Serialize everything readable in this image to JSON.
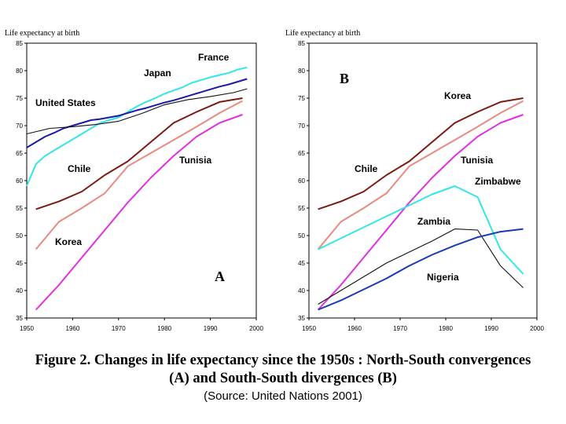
{
  "figure": {
    "caption_line1": "Figure 2. Changes in life expectancy since the 1950s : North-South convergences",
    "caption_line2": "(A) and South-South divergences (B)",
    "source": "(Source: United Nations 2001)"
  },
  "chart_data": [
    {
      "type": "line",
      "panel_label": "A",
      "ylabel": "Life expectancy at birth",
      "xlabel": "",
      "xlim": [
        1950,
        2000
      ],
      "ylim": [
        35,
        85
      ],
      "xticks": [
        "1950",
        "1960",
        "1970",
        "1980",
        "1990",
        "2000"
      ],
      "yticks": [
        "35",
        "40",
        "45",
        "50",
        "55",
        "60",
        "65",
        "70",
        "75",
        "80",
        "85"
      ],
      "grid": false,
      "series": [
        {
          "name": "Japan",
          "color": "#33e6e6",
          "x": [
            1950,
            1952,
            1954,
            1956,
            1958,
            1960,
            1962,
            1964,
            1966,
            1968,
            1970,
            1972,
            1974,
            1976,
            1978,
            1980,
            1982,
            1984,
            1986,
            1988,
            1990,
            1992,
            1994,
            1996,
            1998
          ],
          "y": [
            59,
            63,
            64.5,
            65.5,
            66.5,
            67.5,
            68.5,
            69.5,
            70.5,
            71,
            71.5,
            72.5,
            73.5,
            74.3,
            75,
            75.8,
            76.4,
            77,
            77.8,
            78.3,
            78.8,
            79.2,
            79.6,
            80.2,
            80.6
          ]
        },
        {
          "name": "France",
          "color": "#1a1aa6",
          "x": [
            1950,
            1952,
            1954,
            1956,
            1958,
            1960,
            1962,
            1964,
            1966,
            1968,
            1970,
            1972,
            1974,
            1976,
            1978,
            1980,
            1982,
            1984,
            1986,
            1988,
            1990,
            1992,
            1994,
            1996,
            1998
          ],
          "y": [
            66,
            67,
            68,
            68.7,
            69.5,
            70,
            70.5,
            71,
            71.2,
            71.5,
            71.8,
            72.3,
            72.8,
            73.2,
            73.7,
            74.2,
            74.6,
            75.1,
            75.6,
            76.1,
            76.6,
            77.1,
            77.5,
            78,
            78.5
          ]
        },
        {
          "name": "United States",
          "color": "#111111",
          "x": [
            1950,
            1955,
            1960,
            1965,
            1970,
            1975,
            1980,
            1985,
            1990,
            1995,
            1998
          ],
          "y": [
            68.5,
            69.5,
            69.8,
            70.2,
            70.8,
            72.2,
            73.8,
            74.7,
            75.3,
            76,
            76.7
          ]
        },
        {
          "name": "Chile",
          "color": "#7a1a10",
          "x": [
            1952,
            1957,
            1962,
            1967,
            1972,
            1977,
            1982,
            1987,
            1992,
            1997
          ],
          "y": [
            54.8,
            56.2,
            58,
            61,
            63.5,
            67,
            70.5,
            72.5,
            74.3,
            75
          ]
        },
        {
          "name": "Korea",
          "color": "#e88a80",
          "x": [
            1952,
            1957,
            1962,
            1967,
            1972,
            1977,
            1982,
            1987,
            1992,
            1997
          ],
          "y": [
            47.5,
            52.5,
            55,
            57.7,
            62.6,
            65,
            67.4,
            69.8,
            72.3,
            74.5
          ]
        },
        {
          "name": "Tunisia",
          "color": "#e030e0",
          "x": [
            1952,
            1957,
            1962,
            1967,
            1972,
            1977,
            1982,
            1987,
            1992,
            1997
          ],
          "y": [
            36.5,
            41,
            46,
            51,
            56,
            60.5,
            64.5,
            68,
            70.5,
            72
          ]
        }
      ],
      "annotations": [
        "A",
        "Japan",
        "France",
        "United States",
        "Chile",
        "Korea",
        "Tunisia"
      ]
    },
    {
      "type": "line",
      "panel_label": "B",
      "ylabel": "Life expectancy at birth",
      "xlabel": "",
      "xlim": [
        1950,
        2000
      ],
      "ylim": [
        35,
        85
      ],
      "xticks": [
        "1950",
        "1960",
        "1970",
        "1980",
        "1990",
        "2000"
      ],
      "yticks": [
        "35",
        "40",
        "45",
        "50",
        "55",
        "60",
        "65",
        "70",
        "75",
        "80",
        "85"
      ],
      "grid": false,
      "series": [
        {
          "name": "Korea",
          "color": "#7a1a10",
          "x": [
            1952,
            1957,
            1962,
            1967,
            1972,
            1977,
            1982,
            1987,
            1992,
            1997
          ],
          "y": [
            54.8,
            56.2,
            58,
            61,
            63.5,
            67,
            70.5,
            72.5,
            74.3,
            75
          ]
        },
        {
          "name": "Chile",
          "color": "#e88a80",
          "x": [
            1952,
            1957,
            1962,
            1967,
            1972,
            1977,
            1982,
            1987,
            1992,
            1997
          ],
          "y": [
            47.5,
            52.5,
            55,
            57.7,
            62.6,
            65,
            67.4,
            69.8,
            72.3,
            74.5
          ]
        },
        {
          "name": "Tunisia",
          "color": "#e030e0",
          "x": [
            1952,
            1957,
            1962,
            1967,
            1972,
            1977,
            1982,
            1987,
            1992,
            1997
          ],
          "y": [
            36.5,
            41,
            46,
            51,
            56,
            60.5,
            64.5,
            68,
            70.5,
            72
          ]
        },
        {
          "name": "Zimbabwe",
          "color": "#33e6e6",
          "x": [
            1952,
            1957,
            1962,
            1967,
            1972,
            1977,
            1982,
            1987,
            1992,
            1997
          ],
          "y": [
            47.5,
            49.5,
            51.5,
            53.5,
            55.5,
            57.5,
            59,
            57,
            47.5,
            43
          ]
        },
        {
          "name": "Zambia",
          "color": "#111111",
          "x": [
            1952,
            1957,
            1962,
            1967,
            1972,
            1977,
            1982,
            1987,
            1992,
            1997
          ],
          "y": [
            37.5,
            40,
            42.5,
            45,
            47,
            49,
            51.2,
            51,
            44.5,
            40.5
          ]
        },
        {
          "name": "Nigeria",
          "color": "#1a3ab0",
          "x": [
            1952,
            1957,
            1962,
            1967,
            1972,
            1977,
            1982,
            1987,
            1992,
            1997
          ],
          "y": [
            36.5,
            38.2,
            40.2,
            42.2,
            44.5,
            46.5,
            48.2,
            49.7,
            50.7,
            51.2
          ]
        }
      ],
      "annotations": [
        "B",
        "Korea",
        "Chile",
        "Tunisia",
        "Zimbabwe",
        "Zambia",
        "Nigeria"
      ]
    }
  ]
}
